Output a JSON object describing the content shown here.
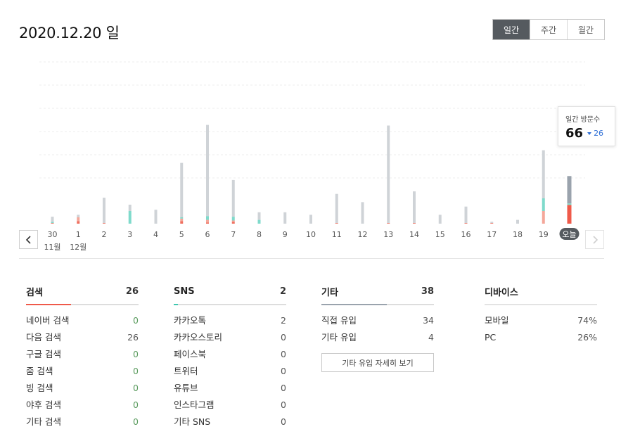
{
  "header": {
    "date": "2020.12.20 일"
  },
  "period_tabs": [
    {
      "label": "일간",
      "active": true
    },
    {
      "label": "주간",
      "active": false
    },
    {
      "label": "월간",
      "active": false
    }
  ],
  "chart_data": {
    "type": "bar",
    "stacked": true,
    "categories": [
      "30",
      "1",
      "2",
      "3",
      "4",
      "5",
      "6",
      "7",
      "8",
      "9",
      "10",
      "11",
      "12",
      "13",
      "14",
      "15",
      "16",
      "17",
      "18",
      "19",
      "오늘"
    ],
    "month_labels": [
      {
        "index": 0,
        "label": "11월"
      },
      {
        "index": 1,
        "label": "12월"
      }
    ],
    "series": [
      {
        "color": "#ef6f5f",
        "values": [
          0.5,
          2,
          0.5,
          0,
          0,
          2,
          1,
          1.5,
          0,
          0,
          0,
          0.5,
          0,
          0.5,
          0.5,
          0,
          0.5,
          0.5,
          0,
          0,
          0
        ]
      },
      {
        "color": "#f4a79a",
        "values": [
          0,
          3,
          0,
          0,
          0,
          2,
          2,
          1,
          0,
          0,
          0,
          0,
          0,
          0,
          0,
          0,
          0,
          0,
          0,
          10,
          0
        ]
      },
      {
        "color": "#7fdacb",
        "values": [
          1,
          0,
          0,
          10,
          0,
          1,
          3,
          3,
          3,
          0,
          0,
          0,
          0,
          0,
          0,
          0,
          0,
          0,
          0,
          10,
          0
        ]
      },
      {
        "color": "#cfd3d7",
        "values": [
          4,
          2,
          20,
          5,
          11,
          43,
          72,
          29,
          6,
          9,
          7,
          23,
          17,
          77,
          25,
          7,
          13,
          1,
          3,
          38,
          0
        ]
      }
    ],
    "today": {
      "search": 26,
      "sns": 2,
      "other": 38,
      "colors": {
        "search": "#ef5a4a",
        "sns": "#7fdacb",
        "other": "#9aa3ad"
      }
    },
    "ylim": [
      0,
      100
    ],
    "grid": true
  },
  "tooltip": {
    "label": "일간 방문수",
    "value": "66",
    "change": "26"
  },
  "stats": {
    "search": {
      "title": "검색",
      "total": "26",
      "color": "#ef5a4a",
      "share": 0.4,
      "rows": [
        {
          "label": "네이버 검색",
          "value": "0"
        },
        {
          "label": "다음 검색",
          "value": "26"
        },
        {
          "label": "구글 검색",
          "value": "0"
        },
        {
          "label": "줌 검색",
          "value": "0"
        },
        {
          "label": "빙 검색",
          "value": "0"
        },
        {
          "label": "야후 검색",
          "value": "0"
        },
        {
          "label": "기타 검색",
          "value": "0"
        }
      ]
    },
    "sns": {
      "title": "SNS",
      "total": "2",
      "color": "#3ec7b0",
      "share": 0.04,
      "rows": [
        {
          "label": "카카오톡",
          "value": "2"
        },
        {
          "label": "카카오스토리",
          "value": "0"
        },
        {
          "label": "페이스북",
          "value": "0"
        },
        {
          "label": "트위터",
          "value": "0"
        },
        {
          "label": "유튜브",
          "value": "0"
        },
        {
          "label": "인스타그램",
          "value": "0"
        },
        {
          "label": "기타 SNS",
          "value": "0"
        }
      ]
    },
    "other": {
      "title": "기타",
      "total": "38",
      "color": "#9aa3ad",
      "share": 0.58,
      "rows": [
        {
          "label": "직접 유입",
          "value": "34"
        },
        {
          "label": "기타 유입",
          "value": "4"
        }
      ],
      "detail_button": "기타 유입 자세히 보기"
    },
    "device": {
      "title": "디바이스",
      "rows": [
        {
          "label": "모바일",
          "value": "74%"
        },
        {
          "label": "PC",
          "value": "26%"
        }
      ]
    }
  }
}
